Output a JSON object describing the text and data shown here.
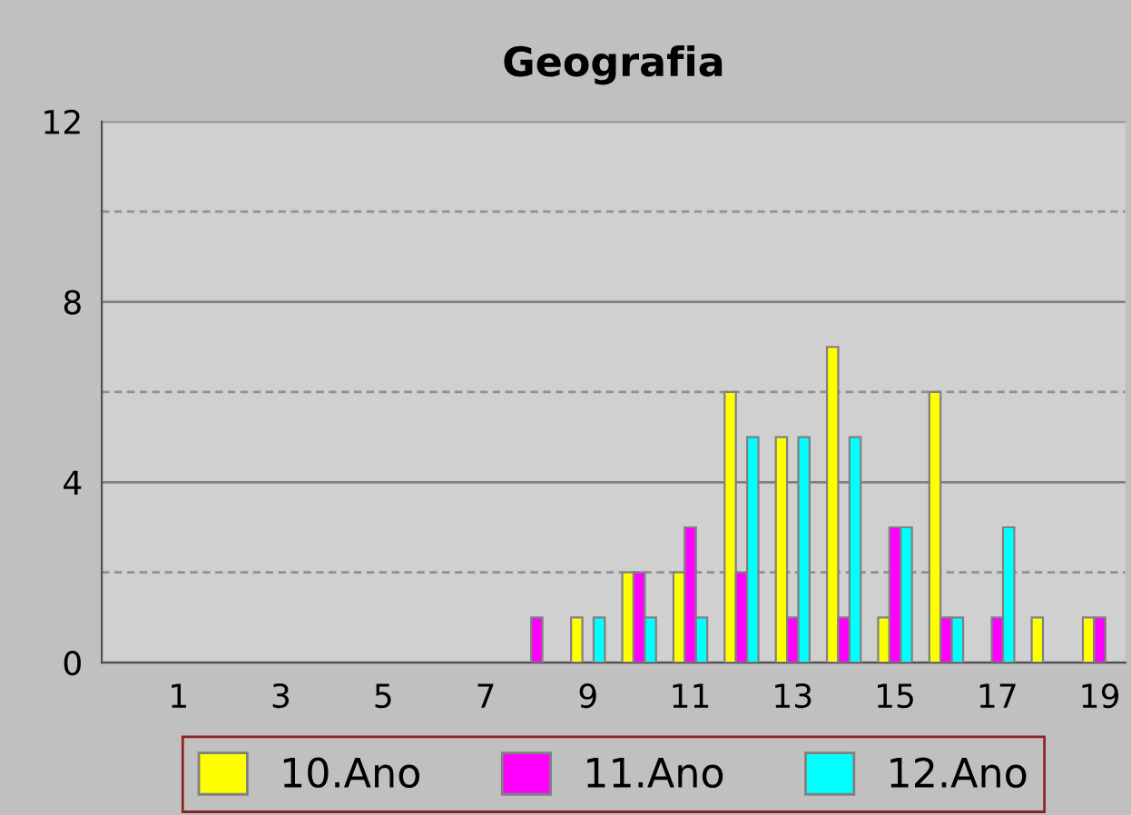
{
  "chart_data": {
    "type": "bar",
    "title": "Geografia",
    "categories": [
      null,
      "1",
      null,
      "3",
      null,
      "5",
      null,
      "7",
      null,
      "9",
      null,
      "11",
      null,
      "13",
      null,
      "15",
      null,
      "17",
      null,
      "19"
    ],
    "series": [
      {
        "name": "10.Ano",
        "color": "#ffff00",
        "values": [
          null,
          null,
          null,
          null,
          null,
          null,
          null,
          null,
          null,
          1,
          2,
          2,
          6,
          5,
          7,
          1,
          6,
          null,
          1,
          1
        ]
      },
      {
        "name": "11.Ano",
        "color": "#ff00ff",
        "values": [
          null,
          null,
          null,
          null,
          null,
          null,
          null,
          null,
          1,
          null,
          2,
          3,
          2,
          1,
          1,
          3,
          1,
          1,
          null,
          1
        ]
      },
      {
        "name": "12.Ano",
        "color": "#00ffff",
        "values": [
          null,
          null,
          null,
          null,
          null,
          null,
          null,
          null,
          null,
          1,
          1,
          1,
          5,
          5,
          5,
          3,
          1,
          3,
          null,
          null
        ]
      }
    ],
    "ylim": [
      0,
      12
    ],
    "yticks": [
      0,
      {
        "value": 2,
        "label": null
      },
      4,
      {
        "value": 6,
        "label": null
      },
      8,
      {
        "value": 10,
        "label": null
      },
      12
    ],
    "grid": "y",
    "legend": "bottom"
  }
}
